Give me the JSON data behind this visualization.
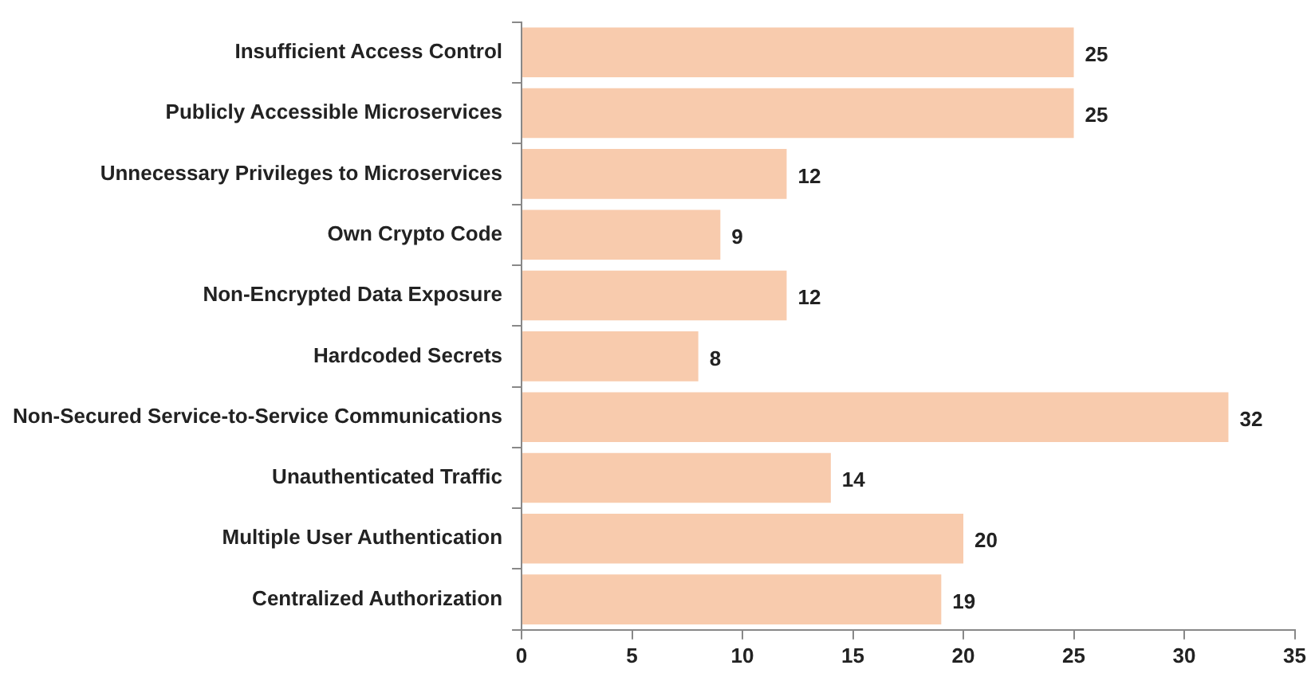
{
  "chart_data": {
    "type": "bar",
    "orientation": "horizontal",
    "categories": [
      "Insufficient Access Control",
      "Publicly Accessible Microservices",
      "Unnecessary Privileges to Microservices",
      "Own Crypto Code",
      "Non-Encrypted Data Exposure",
      "Hardcoded Secrets",
      "Non-Secured Service-to-Service Communications",
      "Unauthenticated Traffic",
      "Multiple User Authentication",
      "Centralized Authorization"
    ],
    "values": [
      25,
      25,
      12,
      9,
      12,
      8,
      32,
      14,
      20,
      19
    ],
    "color": "#f8cbad",
    "xlim": [
      0,
      35
    ],
    "xticks": [
      0,
      5,
      10,
      15,
      20,
      25,
      30,
      35
    ],
    "grid": false,
    "legend": false,
    "data_labels": true
  }
}
